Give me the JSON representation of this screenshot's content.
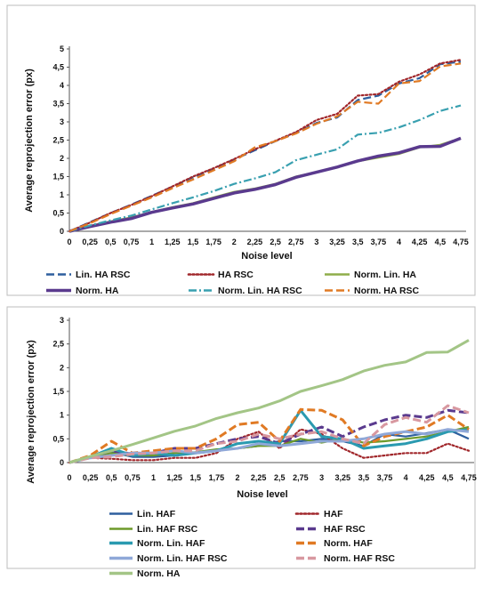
{
  "chart_data": [
    {
      "type": "line",
      "xlabel": "Noise level",
      "ylabel": "Average reprojection error (px)",
      "ylim": [
        0,
        5
      ],
      "yticks": [
        "0",
        "0,5",
        "1",
        "1,5",
        "2",
        "2,5",
        "3",
        "3,5",
        "4",
        "4,5",
        "5"
      ],
      "categories": [
        "0",
        "0,25",
        "0,5",
        "0,75",
        "1",
        "1,25",
        "1,5",
        "1,75",
        "2",
        "2,25",
        "2,5",
        "2,75",
        "3",
        "3,25",
        "3,5",
        "3,75",
        "4",
        "4,25",
        "4,5",
        "4,75"
      ],
      "grid": false,
      "legend_position": "bottom",
      "series": [
        {
          "name": "Lin. HA RSC",
          "color": "#2e5f9e",
          "dash": "longdash",
          "values": [
            0,
            0.25,
            0.5,
            0.73,
            0.97,
            1.22,
            1.48,
            1.72,
            1.97,
            2.22,
            2.47,
            2.7,
            2.97,
            3.12,
            3.6,
            3.72,
            4.05,
            4.2,
            4.58,
            4.65
          ]
        },
        {
          "name": "HA RSC",
          "color": "#a0262a",
          "dash": "dot",
          "values": [
            0,
            0.24,
            0.5,
            0.72,
            0.96,
            1.23,
            1.5,
            1.73,
            1.98,
            2.25,
            2.48,
            2.72,
            3.05,
            3.22,
            3.72,
            3.76,
            4.1,
            4.3,
            4.6,
            4.7
          ]
        },
        {
          "name": "Norm. Lin. HA",
          "color": "#8fad4a",
          "dash": "solid",
          "values": [
            0,
            0.15,
            0.27,
            0.38,
            0.53,
            0.66,
            0.77,
            0.93,
            1.08,
            1.17,
            1.3,
            1.5,
            1.62,
            1.75,
            1.92,
            2.02,
            2.12,
            2.3,
            2.37,
            2.55
          ]
        },
        {
          "name": "Norm. HA",
          "color": "#5a3a8e",
          "dash": "solid",
          "values": [
            0,
            0.13,
            0.25,
            0.35,
            0.52,
            0.64,
            0.75,
            0.9,
            1.05,
            1.15,
            1.28,
            1.48,
            1.62,
            1.76,
            1.93,
            2.06,
            2.15,
            2.32,
            2.33,
            2.55
          ]
        },
        {
          "name": "Norm. Lin. HA RSC",
          "color": "#39a0b0",
          "dash": "dashdot",
          "values": [
            0,
            0.16,
            0.3,
            0.43,
            0.6,
            0.77,
            0.93,
            1.1,
            1.3,
            1.45,
            1.62,
            1.95,
            2.1,
            2.25,
            2.65,
            2.7,
            2.85,
            3.05,
            3.3,
            3.45
          ]
        },
        {
          "name": "Norm. HA RSC",
          "color": "#e07a24",
          "dash": "longdash",
          "values": [
            0,
            0.22,
            0.47,
            0.7,
            0.93,
            1.18,
            1.42,
            1.67,
            1.92,
            2.3,
            2.47,
            2.68,
            2.95,
            3.15,
            3.55,
            3.5,
            4.05,
            4.12,
            4.52,
            4.6
          ]
        }
      ]
    },
    {
      "type": "line",
      "xlabel": "Noise level",
      "ylabel": "Average reprojection error (px)",
      "ylim": [
        0,
        3
      ],
      "yticks": [
        "0",
        "0,5",
        "1",
        "1,5",
        "2",
        "2,5",
        "3"
      ],
      "categories": [
        "0",
        "0,25",
        "0,5",
        "0,75",
        "1",
        "1,25",
        "1,5",
        "1,75",
        "2",
        "2,25",
        "2,5",
        "2,75",
        "3",
        "3,25",
        "3,5",
        "3,75",
        "4",
        "4,25",
        "4,5",
        "4,75"
      ],
      "grid": false,
      "legend_position": "bottom",
      "series": [
        {
          "name": "Lin. HAF",
          "color": "#2e5f9e",
          "dash": "solid",
          "values": [
            0,
            0.12,
            0.22,
            0.12,
            0.12,
            0.15,
            0.2,
            0.25,
            0.3,
            0.35,
            0.45,
            0.45,
            0.5,
            0.45,
            0.35,
            0.6,
            0.55,
            0.62,
            0.7,
            0.5
          ]
        },
        {
          "name": "HAF",
          "color": "#a0262a",
          "dash": "dot",
          "values": [
            0,
            0.1,
            0.08,
            0.05,
            0.05,
            0.1,
            0.1,
            0.2,
            0.5,
            0.65,
            0.3,
            0.7,
            0.6,
            0.3,
            0.1,
            0.15,
            0.2,
            0.2,
            0.4,
            0.25
          ]
        },
        {
          "name": "Lin. HAF RSC",
          "color": "#6d9a2a",
          "dash": "solid",
          "values": [
            0,
            0.12,
            0.2,
            0.15,
            0.15,
            0.2,
            0.22,
            0.28,
            0.3,
            0.35,
            0.35,
            0.5,
            0.42,
            0.5,
            0.42,
            0.45,
            0.5,
            0.55,
            0.65,
            0.75
          ]
        },
        {
          "name": "HAF RSC",
          "color": "#5a3a8e",
          "dash": "longdash",
          "values": [
            0,
            0.12,
            0.25,
            0.18,
            0.2,
            0.3,
            0.3,
            0.4,
            0.5,
            0.55,
            0.4,
            0.6,
            0.75,
            0.55,
            0.75,
            0.9,
            1.0,
            0.95,
            1.1,
            1.05
          ]
        },
        {
          "name": "Norm. Lin. HAF",
          "color": "#2a9ab0",
          "dash": "solid",
          "values": [
            0,
            0.12,
            0.3,
            0.15,
            0.2,
            0.15,
            0.2,
            0.25,
            0.4,
            0.45,
            0.4,
            1.1,
            0.55,
            0.5,
            0.3,
            0.35,
            0.4,
            0.5,
            0.65,
            0.7
          ]
        },
        {
          "name": "Norm. HAF",
          "color": "#e07a24",
          "dash": "longdash",
          "values": [
            0,
            0.15,
            0.45,
            0.2,
            0.25,
            0.3,
            0.3,
            0.5,
            0.8,
            0.85,
            0.45,
            1.12,
            1.1,
            0.9,
            0.35,
            0.55,
            0.65,
            0.75,
            1.0,
            0.7
          ]
        },
        {
          "name": "Norm. Lin. HAF RSC",
          "color": "#8fa8d8",
          "dash": "solid",
          "values": [
            0,
            0.1,
            0.15,
            0.2,
            0.2,
            0.25,
            0.2,
            0.25,
            0.3,
            0.4,
            0.35,
            0.4,
            0.45,
            0.45,
            0.5,
            0.6,
            0.65,
            0.6,
            0.7,
            0.65
          ]
        },
        {
          "name": "Norm. HAF RSC",
          "color": "#d898a0",
          "dash": "longdash",
          "values": [
            0,
            0.1,
            0.12,
            0.18,
            0.2,
            0.25,
            0.25,
            0.4,
            0.45,
            0.6,
            0.5,
            0.6,
            0.65,
            0.5,
            0.4,
            0.8,
            0.95,
            0.85,
            1.2,
            1.05
          ]
        },
        {
          "name": "Norm. HA",
          "color": "#a3c586",
          "dash": "solid",
          "values": [
            0,
            0.13,
            0.25,
            0.38,
            0.52,
            0.66,
            0.77,
            0.93,
            1.05,
            1.15,
            1.3,
            1.5,
            1.62,
            1.75,
            1.93,
            2.05,
            2.12,
            2.32,
            2.33,
            2.58
          ]
        }
      ]
    }
  ]
}
